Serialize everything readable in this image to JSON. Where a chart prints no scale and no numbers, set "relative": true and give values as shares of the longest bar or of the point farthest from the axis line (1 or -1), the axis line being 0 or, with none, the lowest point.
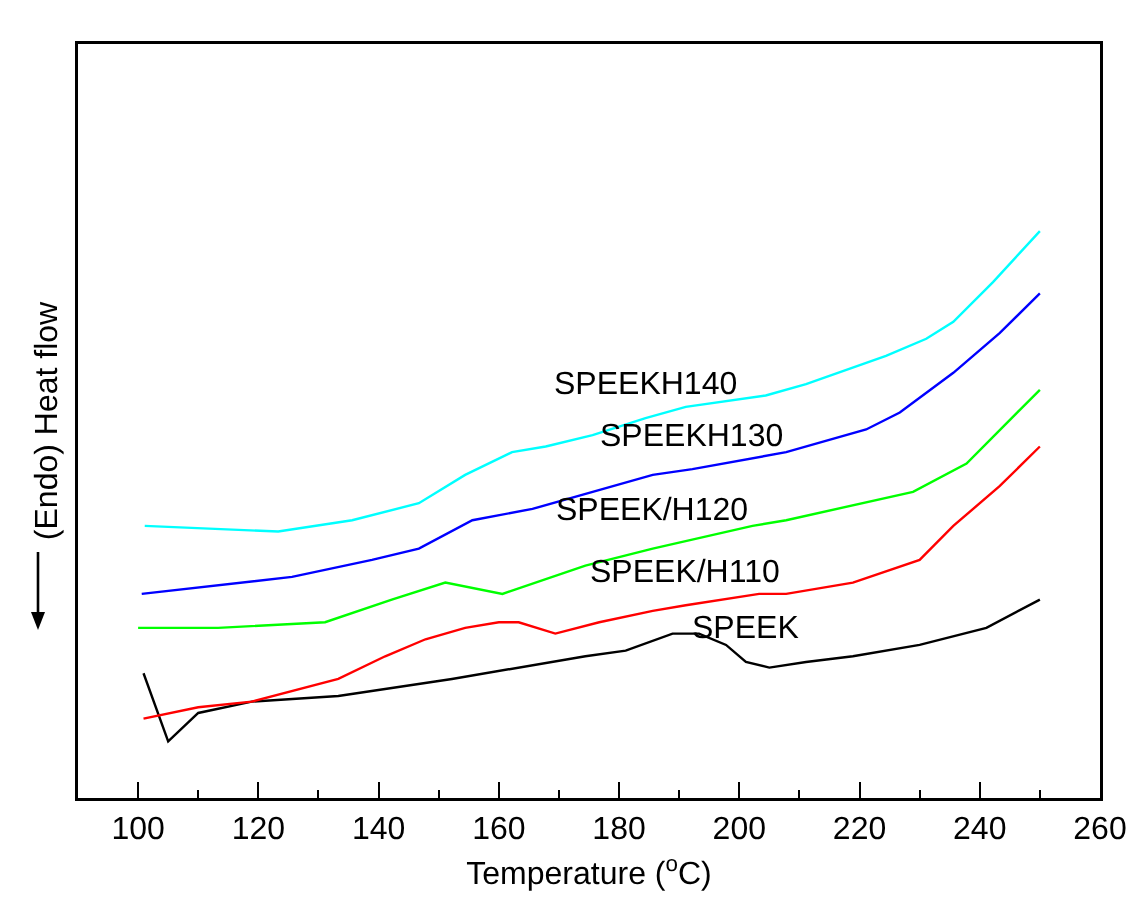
{
  "chart_data": {
    "type": "line",
    "relative": true,
    "xlabel": "Temperature ($^{o}$C)",
    "ylabel": "(Endo) Heat flow",
    "xlim": [
      90,
      260
    ],
    "xticks": [
      100,
      120,
      140,
      160,
      180,
      200,
      220,
      240,
      260
    ],
    "grid": false,
    "legend": false,
    "marker": "none",
    "line_style": "solid",
    "series": [
      {
        "name": "SPEEK",
        "color": "#000000",
        "x": [
          100.9,
          105,
          110,
          118.9,
          133.3,
          152.2,
          174.4,
          181.1,
          188.9,
          193.3,
          197.8,
          201.1,
          205,
          211.1,
          218.9,
          230,
          241.1,
          250
        ],
        "values": [
          0.22,
          0.1,
          0.15,
          0.17,
          0.18,
          0.21,
          0.25,
          0.26,
          0.29,
          0.29,
          0.27,
          0.24,
          0.23,
          0.24,
          0.25,
          0.27,
          0.3,
          0.35
        ]
      },
      {
        "name": "SPEEK/H110",
        "color": "#ff0000",
        "x": [
          100.9,
          110,
          118.9,
          133.3,
          141.1,
          147.8,
          154.4,
          160,
          163.3,
          169.4,
          176.7,
          185.6,
          191.1,
          203.3,
          207.8,
          218.9,
          230,
          235.6,
          243.3,
          250
        ],
        "values": [
          0.14,
          0.16,
          0.17,
          0.21,
          0.25,
          0.28,
          0.3,
          0.31,
          0.31,
          0.29,
          0.31,
          0.33,
          0.34,
          0.36,
          0.36,
          0.38,
          0.42,
          0.48,
          0.55,
          0.62
        ]
      },
      {
        "name": "SPEEK/H120",
        "color": "#00ff00",
        "x": [
          100,
          113.3,
          131.1,
          142.2,
          151.1,
          160.6,
          174.4,
          185.6,
          202.2,
          207.8,
          228.9,
          237.8,
          250
        ],
        "values": [
          0.3,
          0.3,
          0.31,
          0.35,
          0.38,
          0.36,
          0.41,
          0.44,
          0.48,
          0.49,
          0.54,
          0.59,
          0.72
        ]
      },
      {
        "name": "SPEEKH130",
        "color": "#0000ff",
        "x": [
          100.6,
          125.6,
          138.9,
          146.7,
          155.6,
          165.6,
          185.6,
          192.2,
          207.8,
          221.1,
          226.7,
          235.6,
          243.3,
          250
        ],
        "values": [
          0.36,
          0.39,
          0.42,
          0.44,
          0.49,
          0.51,
          0.57,
          0.58,
          0.61,
          0.65,
          0.68,
          0.75,
          0.82,
          0.89
        ]
      },
      {
        "name": "SPEEKH140",
        "color": "#00ffff",
        "x": [
          101.1,
          123.3,
          135.6,
          146.7,
          154.4,
          162.2,
          167.8,
          175.6,
          184.4,
          191.1,
          204.4,
          211.1,
          224.4,
          231.1,
          235.6,
          242.2,
          250
        ],
        "values": [
          0.48,
          0.47,
          0.49,
          0.52,
          0.57,
          0.61,
          0.62,
          0.64,
          0.67,
          0.69,
          0.71,
          0.73,
          0.78,
          0.81,
          0.84,
          0.91,
          1
        ]
      }
    ]
  }
}
